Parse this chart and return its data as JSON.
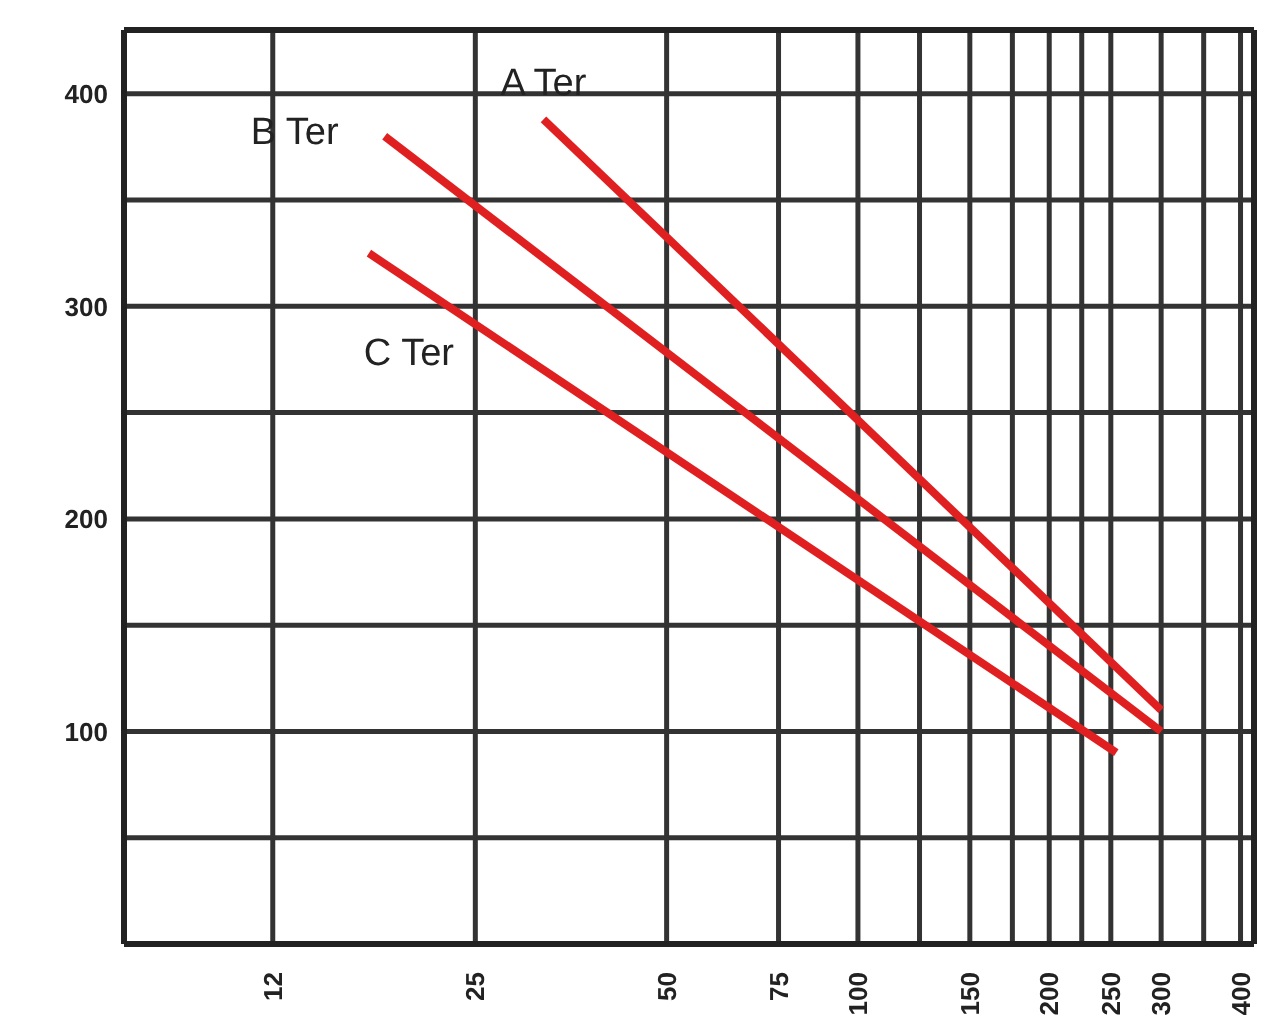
{
  "chart_data": {
    "type": "line",
    "log": "x",
    "grid": true,
    "line_style": "solid",
    "xlim": [
      7,
      420
    ],
    "xticks": [
      12,
      25,
      50,
      75,
      100,
      {
        "value": 125,
        "label": null
      },
      150,
      {
        "value": 175,
        "label": null
      },
      200,
      {
        "value": 225,
        "label": null
      },
      250,
      300,
      {
        "value": 350,
        "label": null
      },
      400
    ],
    "ylim": [
      0,
      430
    ],
    "yticks": [
      {
        "value": 50,
        "label": null
      },
      100,
      {
        "value": 150,
        "label": null
      },
      200,
      {
        "value": 250,
        "label": null
      },
      300,
      {
        "value": 350,
        "label": null
      },
      400
    ],
    "series": [
      {
        "name": "A Ter",
        "color": "#e02020",
        "x": [
          32,
          300
        ],
        "values": [
          388,
          110
        ]
      },
      {
        "name": "B Ter",
        "color": "#e02020",
        "x": [
          18,
          300
        ],
        "values": [
          380,
          100
        ]
      },
      {
        "name": "C Ter",
        "color": "#e02020",
        "x": [
          17,
          255
        ],
        "values": [
          325,
          90
        ]
      }
    ]
  }
}
